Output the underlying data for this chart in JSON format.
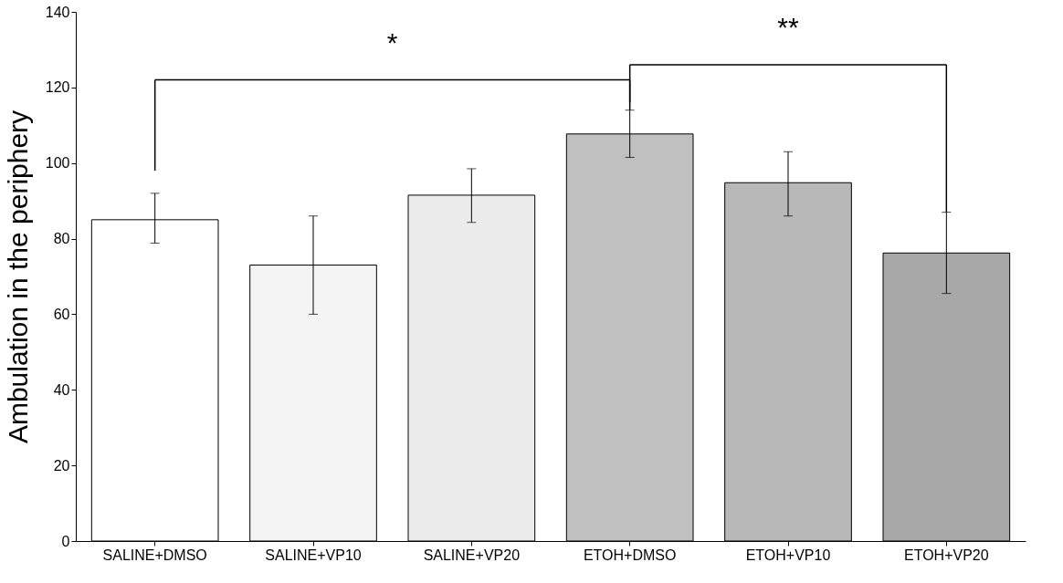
{
  "chart_data": {
    "type": "bar",
    "ylabel": "Ambulation in the periphery",
    "categories": [
      "SALINE+DMSO",
      "SALINE+VP10",
      "SALINE+VP20",
      "ETOH+DMSO",
      "ETOH+VP10",
      "ETOH+VP20"
    ],
    "values": [
      85,
      73,
      91.5,
      107.7,
      94.8,
      76.2
    ],
    "colors": [
      "#ffffff",
      "#f4f4f4",
      "#ececec",
      "#c0c0c0",
      "#b8b8b8",
      "#a8a8a8"
    ],
    "errors": [
      [
        78.8,
        92
      ],
      [
        60,
        86
      ],
      [
        84.3,
        98.5
      ],
      [
        101.5,
        114
      ],
      [
        86,
        103
      ],
      [
        65.5,
        87
      ]
    ],
    "ylim": [
      0,
      140
    ],
    "yticks": [
      0,
      20,
      40,
      60,
      80,
      100,
      120,
      140
    ],
    "grid": false,
    "annotations": [
      "*",
      "**"
    ]
  }
}
